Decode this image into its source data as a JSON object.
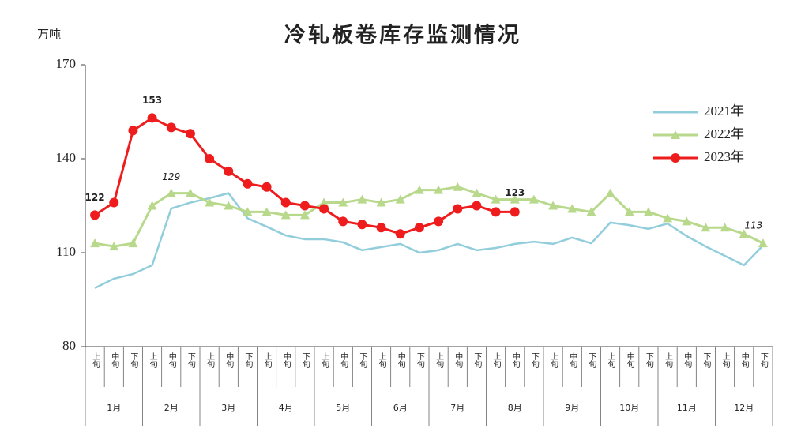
{
  "chart_data": {
    "type": "line",
    "title": "冷轧板卷库存监测情况",
    "y_label": "万吨",
    "categories": [
      "上旬",
      "中旬",
      "下旬",
      "上旬",
      "中旬",
      "下旬",
      "上旬",
      "中旬",
      "下旬",
      "上旬",
      "中旬",
      "下旬",
      "上旬",
      "中旬",
      "下旬",
      "上旬",
      "中旬",
      "下旬",
      "上旬",
      "中旬",
      "下旬",
      "上旬",
      "中旬",
      "下旬",
      "上旬",
      "中旬",
      "下旬",
      "上旬",
      "中旬",
      "下旬",
      "上旬",
      "中旬",
      "下旬",
      "上旬",
      "中旬",
      "下旬"
    ],
    "groups": [
      "1月",
      "2月",
      "3月",
      "4月",
      "5月",
      "6月",
      "7月",
      "8月",
      "9月",
      "10月",
      "11月",
      "12月"
    ],
    "series": [
      {
        "name": "2021年",
        "color": "#92cddc",
        "marker": "none",
        "values": [
          98.7,
          101.7,
          103.2,
          106,
          124.1,
          126,
          127.4,
          129,
          121,
          118.3,
          115.5,
          114.3,
          114.3,
          113.3,
          110.8,
          111.8,
          112.8,
          110,
          110.8,
          112.8,
          110.8,
          111.5,
          112.8,
          113.5,
          112.8,
          114.8,
          113,
          119.6,
          118.8,
          117.6,
          119.3,
          115.3,
          112,
          109,
          106,
          112.3
        ]
      },
      {
        "name": "2022年",
        "color": "#b8d98c",
        "marker": "triangle",
        "values": [
          113,
          112,
          113,
          125,
          129,
          129,
          126,
          125,
          123,
          123,
          122,
          122,
          126,
          126,
          127,
          126,
          127,
          130,
          130,
          131,
          129,
          127,
          127,
          127,
          125,
          124,
          123,
          129,
          123,
          123,
          121,
          120,
          118,
          118,
          116,
          113
        ]
      },
      {
        "name": "2023年",
        "color": "#ee1c1c",
        "marker": "circle",
        "values": [
          122,
          126,
          149,
          153,
          150,
          148,
          140,
          136,
          132,
          131,
          126,
          125,
          124,
          120,
          119,
          118,
          116,
          118,
          120,
          124,
          125,
          123,
          123,
          null,
          null,
          null,
          null,
          null,
          null,
          null,
          null,
          null,
          null,
          null,
          null,
          null
        ]
      }
    ],
    "ylim": [
      80,
      170
    ],
    "yticks": [
      80,
      110,
      140,
      170
    ],
    "grid": false,
    "legend": "upper right"
  }
}
